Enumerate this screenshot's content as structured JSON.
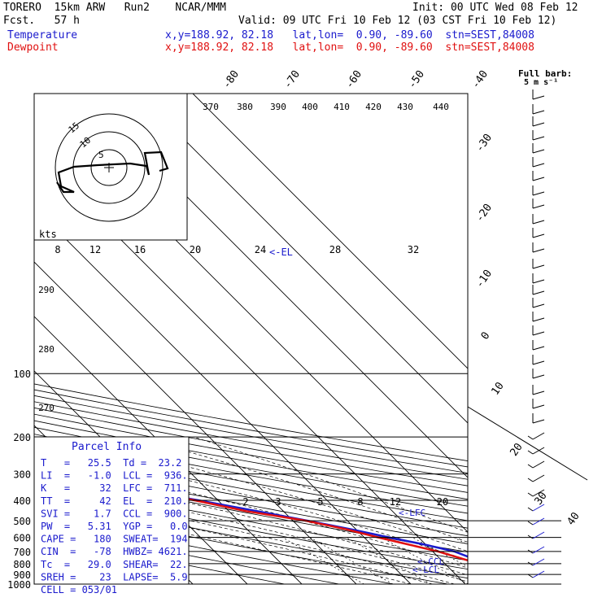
{
  "header": {
    "model": "TORERO  15km ARW   Run2    NCAR/MMM",
    "init": "Init: 00 UTC Wed 08 Feb 12",
    "fcst": "Fcst.   57 h",
    "valid": "Valid: 09 UTC Fri 10 Feb 12 (03 CST Fri 10 Feb 12)",
    "temperature_label": "Temperature",
    "dewpoint_label": "Dewpoint",
    "temp_loc": "x,y=188.92, 82.18   lat,lon=  0.90, -89.60  stn=SEST,84008",
    "dew_loc": "x,y=188.92, 82.18   lat,lon=  0.90, -89.60  stn=SEST,84008"
  },
  "colors": {
    "temperature": "#1a1acd",
    "dewpoint": "#e01010",
    "lines": "#000000"
  },
  "chart_data": {
    "type": "line",
    "chart_kind": "skew-T log-p",
    "y_axis": {
      "scale": "log",
      "range": [
        1000,
        100
      ],
      "ticks": [
        100,
        200,
        300,
        400,
        500,
        600,
        700,
        800,
        900,
        1000
      ]
    },
    "isotherm_labels": [
      "-80",
      "-70",
      "-60",
      "-50",
      "-40",
      "-30",
      "-20",
      "-10",
      "0",
      "10",
      "20",
      "30",
      "40"
    ],
    "theta_labels": [
      "370",
      "380",
      "390",
      "400",
      "410",
      "420",
      "430",
      "440",
      "290",
      "280",
      "270"
    ],
    "mixing_ratio_labels_upper": [
      "8",
      "12",
      "16",
      "20",
      "24",
      "28",
      "32"
    ],
    "mixing_ratio_labels_lower": [
      "2",
      "3",
      "5",
      "8",
      "12",
      "20"
    ],
    "series": [
      {
        "name": "Temperature",
        "x": [
          26.0,
          25.5,
          23.4,
          21.6,
          17.6,
          14.0,
          9.9,
          4.6,
          -0.8,
          -7.3,
          -14.8,
          -23.6,
          -34.0,
          -45.6,
          -53.2,
          -66.9,
          -76.1,
          -80.0
        ],
        "y": [
          1000,
          975,
          925,
          850,
          800,
          700,
          650,
          600,
          550,
          500,
          450,
          400,
          350,
          300,
          270,
          230,
          180,
          140
        ]
      },
      {
        "name": "Dewpoint",
        "x": [
          25.0,
          23.2,
          18.9,
          17.6,
          16.2,
          11.0,
          7.0,
          2.6,
          -1.7,
          -7.6,
          -16.8,
          -24.3,
          -34.5,
          -46.1,
          -55.9,
          -72.6,
          -86.4,
          -91.0
        ],
        "y": [
          1000,
          975,
          925,
          870,
          800,
          700,
          650,
          600,
          550,
          500,
          450,
          400,
          350,
          300,
          270,
          240,
          220,
          140
        ]
      }
    ],
    "annotations": [
      "<-EL",
      "<-LFC",
      "<-CCL",
      "<-LCL"
    ],
    "hodograph": {
      "units_label": "kts",
      "ring_labels": [
        "5",
        "10",
        "15"
      ]
    },
    "wind_barb_note": "Full barb:",
    "wind_barb_unit": "5 m s⁻¹",
    "parcel_info": {
      "title": "Parcel Info",
      "rows": [
        "T   =   25.5  Td =  23.2",
        "LI  =   -1.0  LCL =  936.",
        "K   =     32  LFC =  711.",
        "TT  =     42  EL  =  210.",
        "SVI =    1.7  CCL =  900.",
        "PW  =   5.31  YGP =   0.0",
        "CAPE =   180  SWEAT=  194",
        "CIN  =   -78  HWBZ= 4621.",
        "Tc  =   29.0  SHEAR=  22.",
        "SREH =    23  LAPSE=  5.9",
        "CELL = 053/01"
      ]
    }
  }
}
